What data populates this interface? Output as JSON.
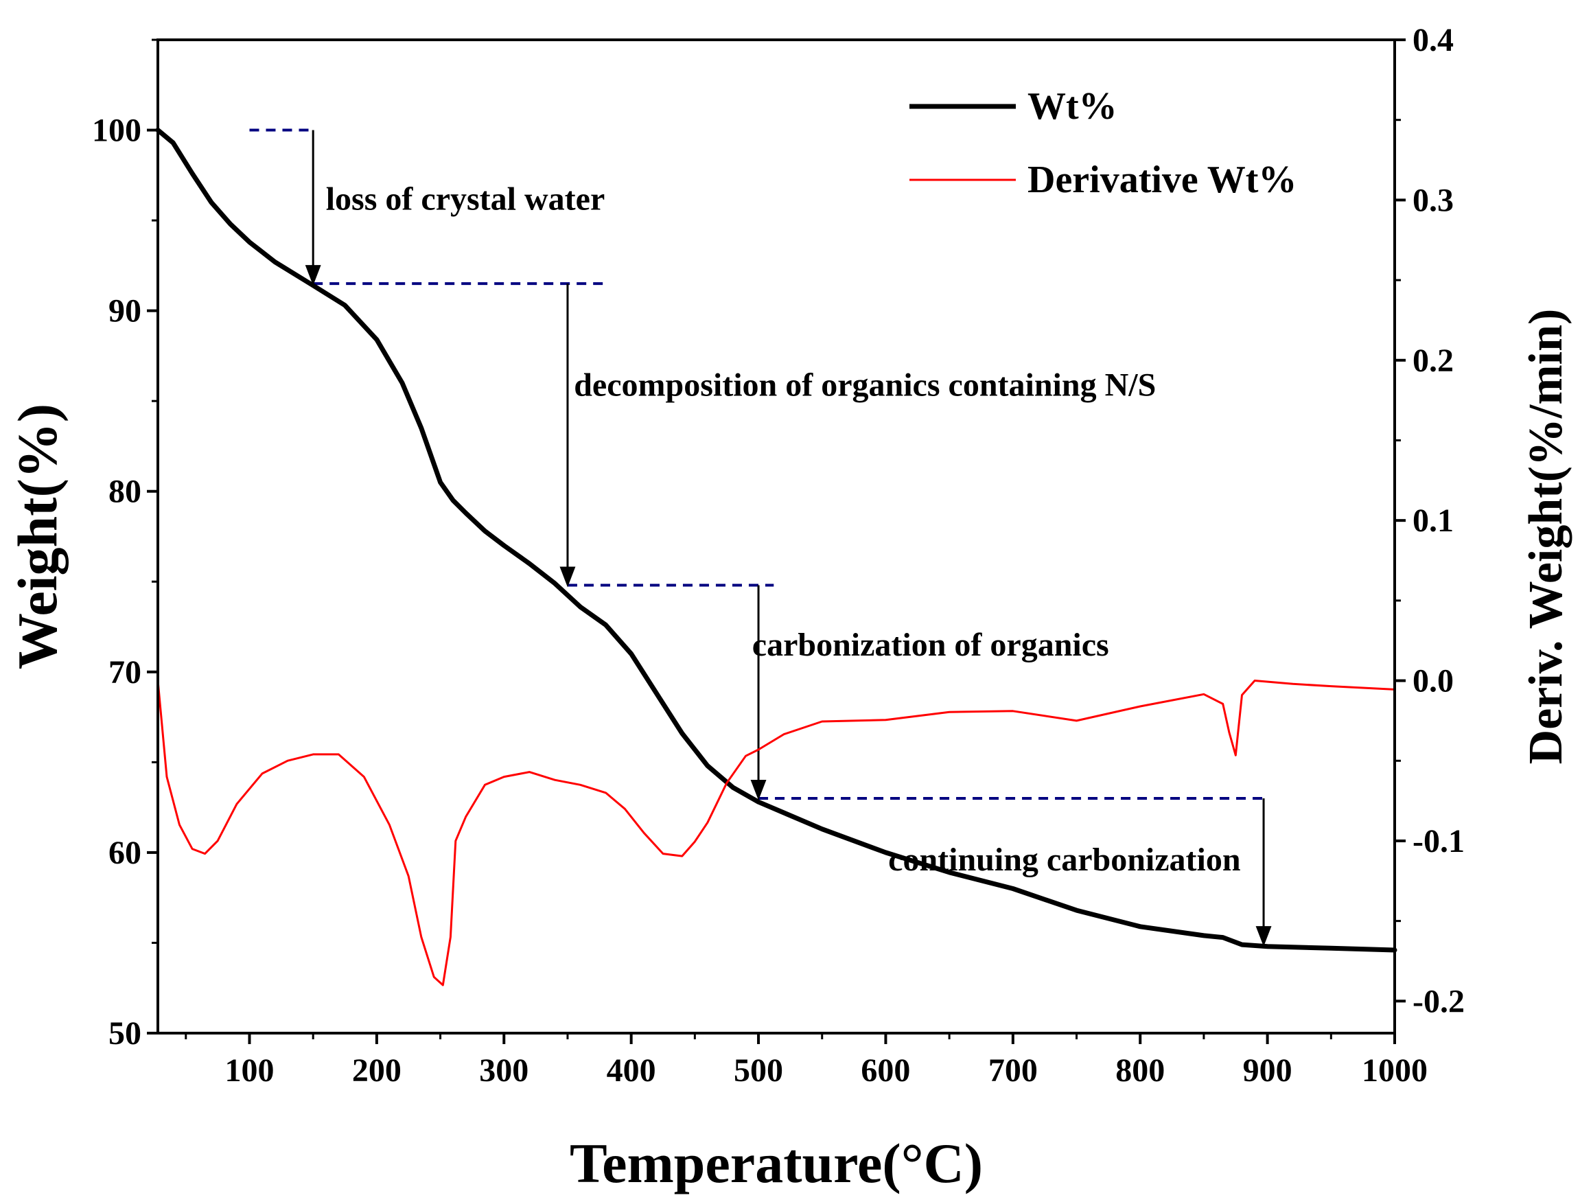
{
  "chart_data": {
    "type": "line",
    "xlabel": "Temperature(°C)",
    "ylabel_left": "Weight(%)",
    "ylabel_right": "Deriv. Weight(%/min)",
    "xlim": [
      28,
      1000
    ],
    "ylim_left": [
      50,
      105
    ],
    "ylim_right": [
      -0.22,
      0.4
    ],
    "x_ticks": [
      100,
      200,
      300,
      400,
      500,
      600,
      700,
      800,
      900,
      1000
    ],
    "y_left_ticks": [
      50,
      60,
      70,
      80,
      90,
      100
    ],
    "y_right_ticks": [
      -0.2,
      -0.1,
      0.0,
      0.1,
      0.2,
      0.3,
      0.4
    ],
    "y_right_tick_labels": [
      "-0.2",
      "-0.1",
      "0.0",
      "0.1",
      "0.2",
      "0.3",
      "0.4"
    ],
    "grid": false,
    "legend_position": "top-right",
    "series": [
      {
        "name": "Wt%",
        "axis": "left",
        "color": "#000000",
        "x": [
          28,
          40,
          55,
          70,
          85,
          100,
          120,
          150,
          175,
          200,
          220,
          235,
          250,
          260,
          270,
          285,
          300,
          320,
          340,
          360,
          380,
          400,
          420,
          440,
          460,
          480,
          500,
          520,
          550,
          600,
          650,
          700,
          750,
          800,
          850,
          865,
          880,
          900,
          950,
          1000
        ],
        "y": [
          100,
          99.3,
          97.6,
          96.0,
          94.8,
          93.8,
          92.7,
          91.4,
          90.3,
          88.4,
          86.0,
          83.5,
          80.5,
          79.5,
          78.8,
          77.8,
          77.0,
          76.0,
          74.9,
          73.6,
          72.6,
          71.0,
          68.8,
          66.6,
          64.8,
          63.6,
          62.8,
          62.2,
          61.3,
          60.0,
          58.9,
          58.0,
          56.8,
          55.9,
          55.4,
          55.3,
          54.9,
          54.8,
          54.7,
          54.6
        ]
      },
      {
        "name": "Derivative Wt%",
        "axis": "right",
        "color": "#ff0000",
        "x": [
          28,
          35,
          45,
          55,
          65,
          75,
          90,
          110,
          130,
          150,
          170,
          190,
          210,
          225,
          235,
          245,
          252,
          258,
          262,
          270,
          285,
          300,
          320,
          340,
          360,
          380,
          395,
          410,
          425,
          440,
          450,
          460,
          475,
          490,
          500,
          520,
          550,
          600,
          650,
          700,
          750,
          800,
          850,
          865,
          870,
          875,
          880,
          890,
          920,
          950,
          1000
        ],
        "y": [
          0.0,
          -0.06,
          -0.09,
          -0.105,
          -0.108,
          -0.1,
          -0.077,
          -0.058,
          -0.05,
          -0.046,
          -0.046,
          -0.06,
          -0.09,
          -0.122,
          -0.16,
          -0.185,
          -0.19,
          -0.16,
          -0.1,
          -0.085,
          -0.065,
          -0.06,
          -0.057,
          -0.062,
          -0.065,
          -0.07,
          -0.08,
          -0.095,
          -0.108,
          -0.11,
          -0.1,
          -0.087,
          -0.065,
          -0.047,
          -0.042,
          -0.035,
          -0.026,
          -0.024,
          -0.018,
          -0.02,
          -0.025,
          -0.015,
          -0.01,
          -0.015,
          -0.032,
          -0.045,
          -0.01,
          0.0,
          -0.001,
          -0.005,
          -0.006
        ]
      }
    ],
    "legend": [
      {
        "label": "Wt%",
        "color": "#000000"
      },
      {
        "label": "Derivative Wt%",
        "color": "#ff0000"
      }
    ],
    "annotations": [
      {
        "text": "loss of crystal water",
        "x": 100,
        "x_end": 150,
        "y_from": 100,
        "y_to": 91.5,
        "text_x": 160,
        "text_y": 95.6
      },
      {
        "text": "decomposition of organics containing N/S",
        "x": 150,
        "x_end": 380,
        "y_from": 91.5,
        "y_to": 74.8,
        "text_x": 355,
        "text_y": 85.3
      },
      {
        "text": "carbonization of organics",
        "x": 350,
        "x_end": 512,
        "y_from": 74.8,
        "y_to": 63.0,
        "text_x": 495,
        "text_y": 70.9
      },
      {
        "text": "continuing carbonization",
        "x": 500,
        "x_end": 897,
        "y_from": 63.0,
        "y_to": 54.9,
        "text_x": 602,
        "text_y": 59.0
      }
    ],
    "annotation_line_color": "#000080"
  }
}
